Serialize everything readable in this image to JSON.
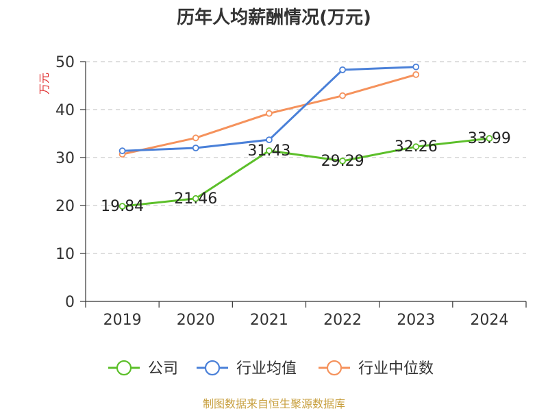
{
  "chart_data": {
    "type": "line",
    "title": "历年人均薪酬情况(万元)",
    "ylabel": "万元",
    "xlabel": "",
    "categories": [
      "2019",
      "2020",
      "2021",
      "2022",
      "2023",
      "2024"
    ],
    "ylim": [
      0,
      50
    ],
    "yticks": [
      0,
      10,
      20,
      30,
      40,
      50
    ],
    "grid": true,
    "legend_position": "bottom",
    "series": [
      {
        "name": "公司",
        "color": "#5cbf2a",
        "values": [
          19.84,
          21.46,
          31.43,
          29.29,
          32.26,
          33.99
        ],
        "labels": [
          "19.84",
          "21.46",
          "31.43",
          "29.29",
          "32.26",
          "33.99"
        ]
      },
      {
        "name": "行业均值",
        "color": "#4a80d8",
        "values": [
          31.4,
          32.0,
          33.7,
          48.3,
          48.9,
          null
        ]
      },
      {
        "name": "行业中位数",
        "color": "#f5925c",
        "values": [
          30.7,
          34.1,
          39.2,
          42.9,
          47.3,
          null
        ]
      }
    ]
  },
  "source": "制图数据来自恒生聚源数据库",
  "colors": {
    "title": "#333333",
    "ylabel": "#e03030",
    "source": "#c8a040",
    "grid": "#cccccc",
    "axis": "#333333"
  }
}
